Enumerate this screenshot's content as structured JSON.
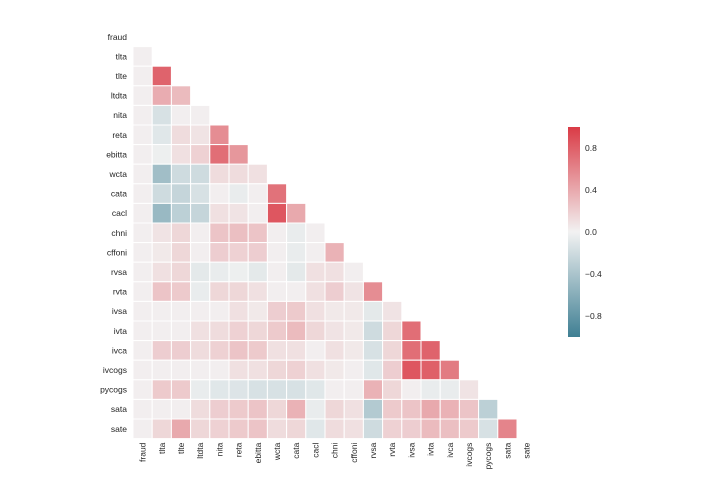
{
  "chart_data": {
    "type": "heatmap",
    "subtype": "lower-triangle correlation matrix",
    "title": "",
    "xlabel": "",
    "ylabel": "",
    "variables": [
      "fraud",
      "tlta",
      "tlte",
      "ltdta",
      "nita",
      "reta",
      "ebitta",
      "wcta",
      "cata",
      "cacl",
      "chni",
      "cffoni",
      "rvsa",
      "rvta",
      "ivsa",
      "ivta",
      "ivca",
      "ivcogs",
      "pycogs",
      "sata",
      "sate"
    ],
    "values": [
      [],
      [
        0.02
      ],
      [
        0.02,
        0.78
      ],
      [
        0.02,
        0.38,
        0.3
      ],
      [
        0.02,
        -0.15,
        0.02,
        0.02
      ],
      [
        0.02,
        -0.1,
        0.12,
        0.08,
        0.55
      ],
      [
        0.02,
        -0.03,
        0.1,
        0.18,
        0.72,
        0.5
      ],
      [
        0.02,
        -0.45,
        -0.2,
        -0.2,
        0.12,
        0.12,
        0.1
      ],
      [
        0.02,
        -0.2,
        -0.25,
        -0.15,
        0.02,
        -0.05,
        0.02,
        0.7
      ],
      [
        0.02,
        -0.5,
        -0.3,
        -0.25,
        0.1,
        0.08,
        0.02,
        0.85,
        0.4
      ],
      [
        0.02,
        0.08,
        0.15,
        0.02,
        0.25,
        0.28,
        0.25,
        0.02,
        -0.05,
        0.02
      ],
      [
        0.02,
        0.05,
        0.15,
        0.02,
        0.2,
        0.18,
        0.2,
        0.02,
        -0.05,
        0.02,
        0.35
      ],
      [
        0.02,
        0.1,
        0.15,
        -0.08,
        -0.05,
        -0.03,
        -0.08,
        0.02,
        -0.08,
        0.1,
        0.1,
        0.02
      ],
      [
        0.02,
        0.25,
        0.22,
        -0.05,
        0.15,
        0.15,
        0.1,
        0.02,
        0.02,
        0.1,
        0.2,
        0.08,
        0.55
      ],
      [
        0.02,
        0.02,
        0.02,
        0.02,
        0.02,
        0.1,
        0.05,
        0.2,
        0.22,
        0.1,
        0.05,
        0.05,
        -0.08,
        0.08
      ],
      [
        0.02,
        0.02,
        0.02,
        0.1,
        0.12,
        0.18,
        0.15,
        0.22,
        0.3,
        0.15,
        0.08,
        0.05,
        -0.2,
        0.15,
        0.72
      ],
      [
        0.02,
        0.2,
        0.2,
        0.12,
        0.18,
        0.25,
        0.22,
        0.1,
        0.1,
        0.02,
        0.1,
        0.05,
        -0.15,
        0.15,
        0.72,
        0.78
      ],
      [
        0.02,
        0.02,
        0.02,
        0.02,
        0.02,
        0.1,
        0.1,
        0.15,
        0.18,
        0.1,
        0.05,
        0.02,
        -0.1,
        0.2,
        0.85,
        0.8,
        0.65
      ],
      [
        0.02,
        0.22,
        0.22,
        -0.05,
        -0.1,
        -0.12,
        -0.15,
        -0.15,
        -0.15,
        -0.1,
        0.02,
        0.02,
        0.35,
        0.15,
        0.02,
        -0.05,
        -0.05,
        0.08
      ],
      [
        0.02,
        0.02,
        0.02,
        0.12,
        0.2,
        0.22,
        0.25,
        0.15,
        0.35,
        -0.05,
        0.15,
        0.1,
        -0.35,
        0.22,
        0.25,
        0.4,
        0.35,
        0.25,
        -0.3
      ],
      [
        0.02,
        0.15,
        0.4,
        0.15,
        0.18,
        0.22,
        0.25,
        0.12,
        0.15,
        -0.1,
        0.12,
        0.1,
        -0.2,
        0.18,
        0.2,
        0.3,
        0.28,
        0.22,
        -0.15,
        0.6
      ]
    ],
    "colorbar": {
      "vmin": -1.0,
      "vmax": 1.0,
      "ticks": [
        0.8,
        0.4,
        0.0,
        -0.4,
        -0.8
      ],
      "tick_labels": [
        "0.8",
        "0.4",
        "0.0",
        "−0.4",
        "−0.8"
      ],
      "color_low": "#3f7f93",
      "color_mid": "#f2f2f2",
      "color_high": "#da3b46"
    },
    "mask": "upper triangle including diagonal (except first column)",
    "grid": false,
    "cell_border_color": "#ffffff"
  }
}
